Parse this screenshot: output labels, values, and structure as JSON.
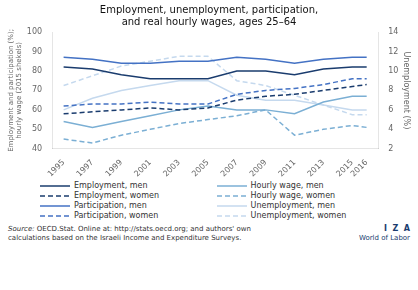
{
  "chart_data": {
    "type": "line",
    "title": "Employment, unemployment, participation,\nand real hourly wages, ages 25–64",
    "x": [
      1995,
      1997,
      1999,
      2001,
      2003,
      2005,
      2007,
      2009,
      2011,
      2013,
      2015,
      2016
    ],
    "xlim": [
      1994.2,
      2016.8
    ],
    "xticks": [
      1995,
      1997,
      1999,
      2001,
      2003,
      2005,
      2007,
      2009,
      2011,
      2013,
      2015,
      2016
    ],
    "y_label": "Employment and participation (%);\nhourly wage (2015 shekels)",
    "y2_label": "Unemployment (%)",
    "ylim": [
      40,
      100
    ],
    "yticks": [
      40,
      50,
      60,
      70,
      80,
      90,
      100
    ],
    "y2lim": [
      2,
      14
    ],
    "y2ticks": [
      2,
      4,
      6,
      8,
      10,
      12,
      14
    ],
    "grid": false,
    "series": [
      {
        "name": "Employment, men",
        "color": "#1a3c6e",
        "line_style": "solid",
        "values": [
          82,
          81,
          78,
          76,
          76,
          76,
          80,
          80,
          78,
          81,
          82,
          82
        ]
      },
      {
        "name": "Employment, women",
        "color": "#1a3c6e",
        "line_style": "dashed",
        "values": [
          58,
          59,
          60,
          61,
          60,
          61,
          65,
          67,
          68,
          70,
          72,
          73
        ]
      },
      {
        "name": "Participation, men",
        "color": "#4472c4",
        "line_style": "solid",
        "values": [
          87,
          86,
          84,
          84,
          85,
          85,
          87,
          86,
          84,
          86,
          87,
          87
        ]
      },
      {
        "name": "Participation, women",
        "color": "#4472c4",
        "line_style": "dashed",
        "values": [
          62,
          63,
          63,
          64,
          63,
          63,
          68,
          70,
          71,
          73,
          76,
          76
        ]
      },
      {
        "name": "Hourly wage, men",
        "color": "#7bafd4",
        "line_style": "solid",
        "values": [
          54,
          51,
          54,
          57,
          60,
          62,
          60,
          60,
          58,
          64,
          67,
          67
        ]
      },
      {
        "name": "Hourly wage, women",
        "color": "#7bafd4",
        "line_style": "dashed",
        "values": [
          45,
          43,
          47,
          50,
          53,
          55,
          57,
          60,
          47,
          50,
          52,
          51
        ]
      },
      {
        "name": "Unemployment, men",
        "color": "#c5d9ee",
        "line_style": "solid",
        "axis": "y2",
        "values": [
          6.0,
          7.2,
          8.0,
          8.5,
          9.0,
          9.0,
          7.5,
          7.0,
          7.0,
          6.5,
          6.0,
          6.0
        ]
      },
      {
        "name": "Unemployment, women",
        "color": "#c5d9ee",
        "line_style": "dashed",
        "axis": "y2",
        "values": [
          8.5,
          9.5,
          10.5,
          11.0,
          11.5,
          11.5,
          9.0,
          8.5,
          7.5,
          6.5,
          5.5,
          5.5
        ]
      }
    ],
    "annotations": [
      "Source:",
      " OECD.Stat. Online at: http://stats.oecd.org; and authors' own\ncalculations based on the Israeli Income and Expenditure Surveys.",
      "I  Z  A",
      "World of Labor"
    ]
  }
}
